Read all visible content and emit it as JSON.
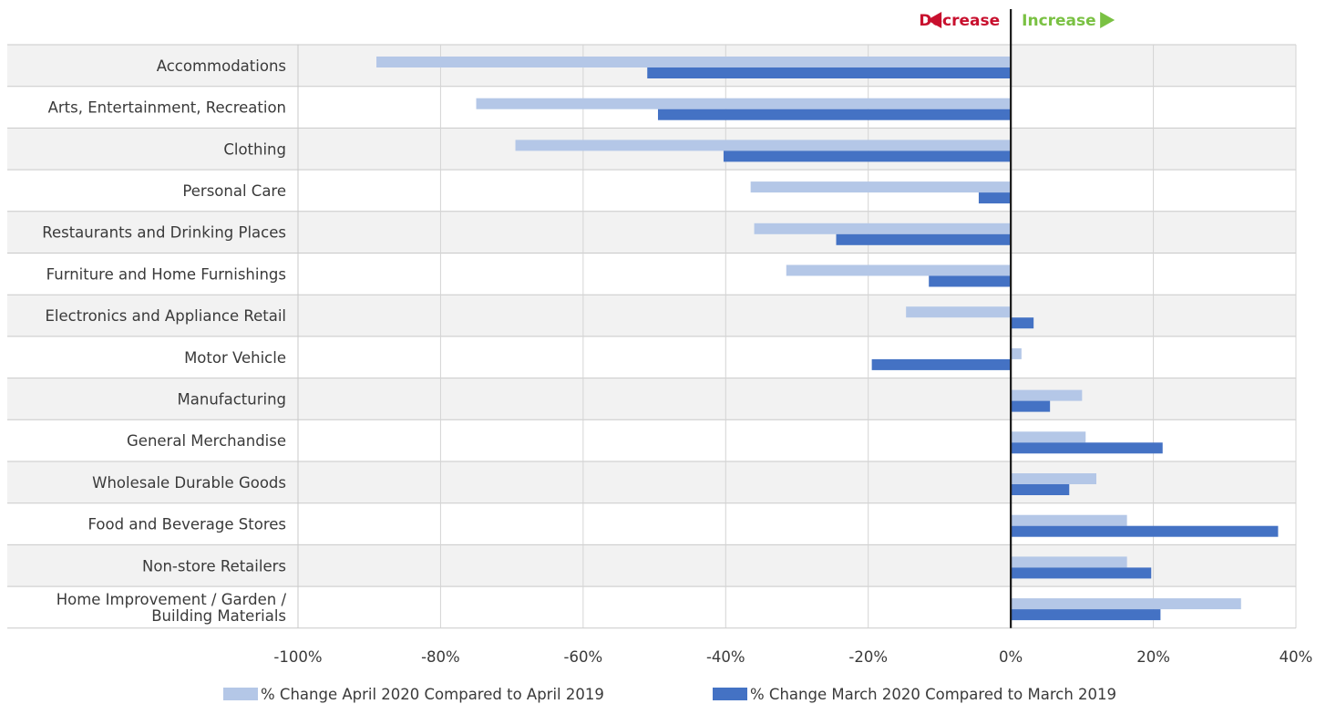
{
  "chart_data": {
    "type": "bar",
    "orientation": "horizontal",
    "categories": [
      "Accommodations",
      "Arts, Entertainment, Recreation",
      "Clothing",
      "Personal Care",
      "Restaurants and Drinking Places",
      "Furniture and Home Furnishings",
      "Electronics and Appliance Retail",
      "Motor Vehicle",
      "Manufacturing",
      "General Merchandise",
      "Wholesale Durable Goods",
      "Food and Beverage Stores",
      "Non-store Retailers",
      "Home Improvement / Garden / Building Materials"
    ],
    "series": [
      {
        "name": "% Change April 2020 Compared to April 2019",
        "color": "#b4c7e7",
        "values": [
          -89,
          -75,
          -69.5,
          -36.5,
          -36,
          -31.5,
          -14.7,
          1.5,
          10,
          10.5,
          12,
          16.3,
          16.3,
          32.3
        ]
      },
      {
        "name": "% Change March 2020 Compared to March 2019",
        "color": "#4472c4",
        "values": [
          -51,
          -49.5,
          -40.3,
          -4.5,
          -24.5,
          -11.5,
          3.2,
          -19.5,
          5.5,
          21.3,
          8.2,
          37.5,
          19.7,
          21
        ]
      }
    ],
    "xlim": [
      -100,
      40
    ],
    "xticks": [
      -100,
      -80,
      -60,
      -40,
      -20,
      0,
      20,
      40
    ],
    "xtick_labels": [
      "-100%",
      "-80%",
      "-60%",
      "-40%",
      "-20%",
      "0%",
      "20%",
      "40%"
    ],
    "grid": true,
    "legend_position": "bottom",
    "annotations": {
      "decrease": "Decrease",
      "increase": "Increase",
      "decrease_color": "#c8102e",
      "increase_color": "#7ac143"
    },
    "row_band_color": "#f2f2f2"
  }
}
